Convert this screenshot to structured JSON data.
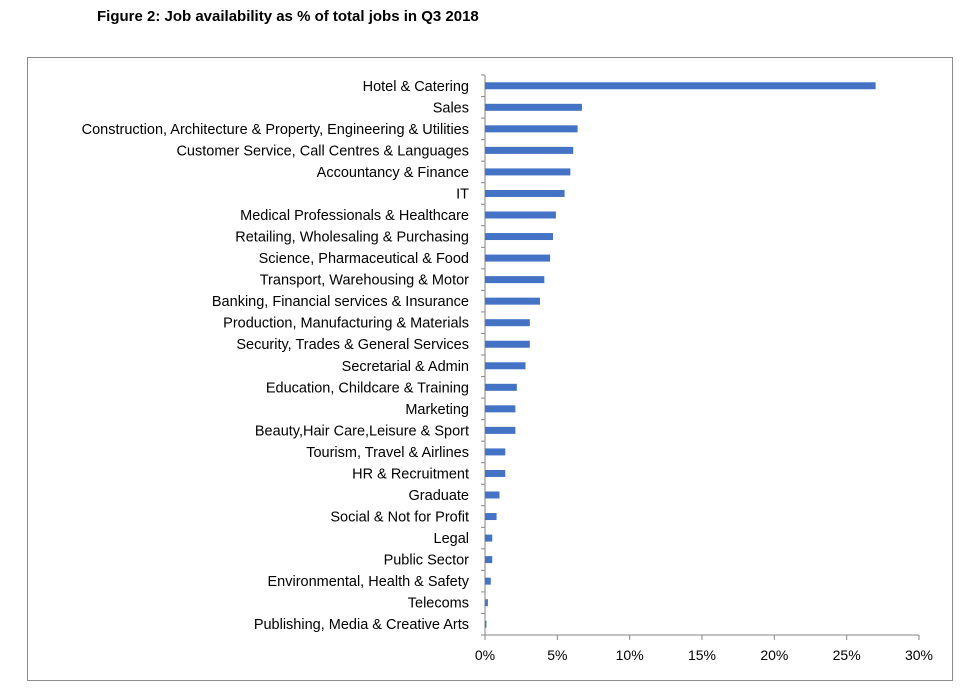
{
  "title": "Figure 2: Job availability as % of total jobs in Q3 2018",
  "chart_data": {
    "type": "bar",
    "orientation": "horizontal",
    "title": "Figure 2: Job availability as % of total jobs in Q3 2018",
    "xlabel": "",
    "ylabel": "",
    "xlim": [
      0,
      30
    ],
    "x_ticks": [
      "0%",
      "5%",
      "10%",
      "15%",
      "20%",
      "25%",
      "30%"
    ],
    "grid": false,
    "legend": "none",
    "bar_color": "#4472c4",
    "categories": [
      "Hotel & Catering",
      "Sales",
      "Construction, Architecture & Property, Engineering & Utilities",
      "Customer Service, Call Centres & Languages",
      "Accountancy & Finance",
      "IT",
      "Medical Professionals & Healthcare",
      "Retailing, Wholesaling & Purchasing",
      "Science, Pharmaceutical & Food",
      "Transport, Warehousing & Motor",
      "Banking, Financial services & Insurance",
      "Production, Manufacturing & Materials",
      "Security, Trades & General Services",
      "Secretarial & Admin",
      "Education, Childcare & Training",
      "Marketing",
      "Beauty,Hair Care,Leisure & Sport",
      "Tourism, Travel & Airlines",
      "HR & Recruitment",
      "Graduate",
      "Social & Not for Profit",
      "Legal",
      "Public Sector",
      "Environmental, Health & Safety",
      "Telecoms",
      "Publishing, Media & Creative Arts"
    ],
    "values": [
      27.0,
      6.7,
      6.4,
      6.1,
      5.9,
      5.5,
      4.9,
      4.7,
      4.5,
      4.1,
      3.8,
      3.1,
      3.1,
      2.8,
      2.2,
      2.1,
      2.1,
      1.4,
      1.4,
      1.0,
      0.8,
      0.5,
      0.5,
      0.4,
      0.2,
      0.1
    ]
  }
}
